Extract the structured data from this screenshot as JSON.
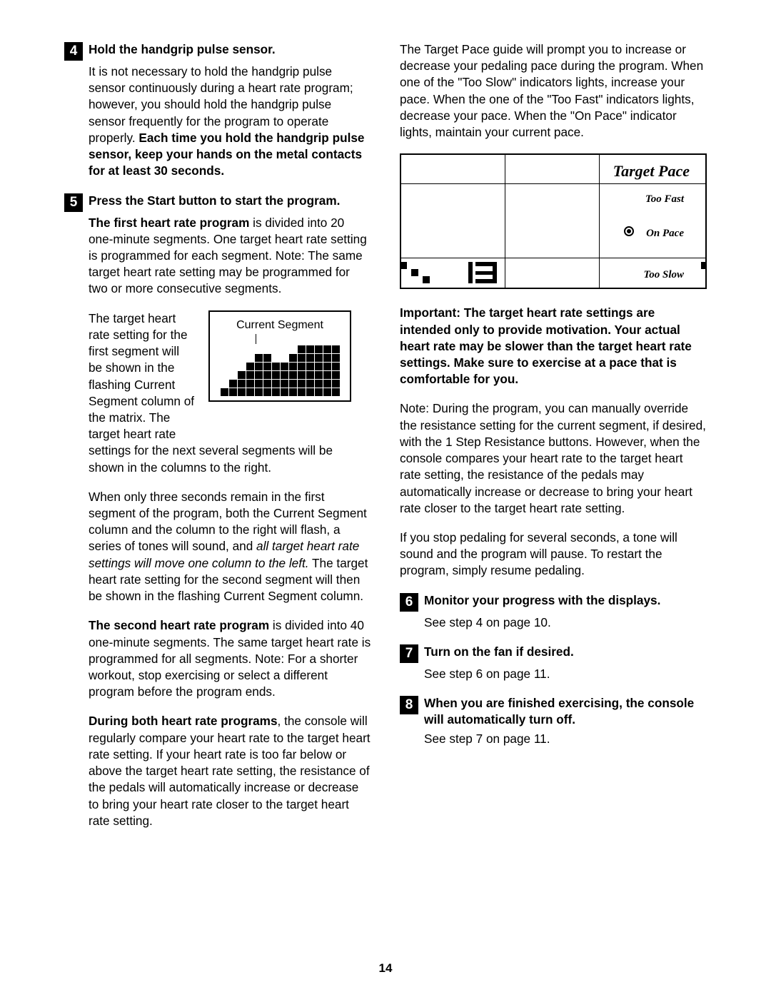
{
  "page_number": "14",
  "left": {
    "step4": {
      "num": "4",
      "title": "Hold the handgrip pulse sensor.",
      "p1a": "It is not necessary to hold the handgrip pulse sensor continuously during a heart rate program; however, you should hold the handgrip pulse sensor frequently for the program to operate properly. ",
      "p1b": "Each time you hold the handgrip pulse sensor, keep your hands on the metal contacts for at least 30 seconds."
    },
    "step5": {
      "num": "5",
      "title": "Press the Start button to start the program.",
      "p1a": "The first heart rate program",
      "p1b": " is divided into 20 one-minute segments. One target heart rate setting is programmed for each segment. Note: The same target heart rate setting may be programmed for two or more consecutive segments.",
      "seg_label": "Current Segment",
      "seg_text": "The target heart rate setting for the first segment will be shown in the flashing Current Segment column of the matrix. The target heart rate ",
      "p2": "settings for the next several segments will be shown in the columns to the right.",
      "p3a": "When only three seconds remain in the first segment of the program, both the Current Segment column and the column to the right will flash, a series of tones will sound, and ",
      "p3b": "all target heart rate settings will move one column to the left.",
      "p3c": " The target heart rate setting for the second segment will then be shown in the flashing Current Segment column.",
      "p4a": "The second heart rate program",
      "p4b": " is divided into 40 one-minute segments. The same target heart rate is programmed for all segments. Note: For a shorter workout, stop exercising or select a different program before the program ends.",
      "p5a": "During both heart rate programs",
      "p5b": ", the console will regularly compare your heart rate to the target heart rate setting. If your heart rate is too far below or above the target heart rate setting, the resistance of the pedals will automatically increase or decrease to bring your heart rate closer to the target heart rate setting."
    },
    "matrix": {
      "cols": 14,
      "rows": 6,
      "heights": [
        1,
        2,
        3,
        4,
        5,
        5,
        4,
        4,
        5,
        6,
        6,
        6,
        6,
        6
      ]
    }
  },
  "right": {
    "intro": "The Target Pace guide will prompt you to increase or decrease your pedaling pace during the program. When one of the \"Too Slow\" indicators lights, increase your pace. When the one of the \"Too Fast\" indicators lights, decrease your pace. When the \"On Pace\" indicator lights, maintain your current pace.",
    "pace": {
      "title": "Target Pace",
      "too_fast": "Too Fast",
      "on_pace": "On Pace",
      "too_slow": "Too Slow"
    },
    "important": "Important: The target heart rate settings are intended only to provide motivation. Your actual heart rate may be slower than the target heart rate settings. Make sure to exercise at a pace that is comfortable for you.",
    "note": "Note: During the program, you can manually override the resistance setting for the current segment, if desired, with the 1 Step Resistance buttons. However, when the console compares your heart rate to the target heart rate setting, the resistance of the pedals may automatically increase or decrease to bring your heart rate closer to the target heart rate setting.",
    "pause": "If you stop pedaling for several seconds, a tone will sound and the program will pause. To restart the program, simply resume pedaling.",
    "step6": {
      "num": "6",
      "title": "Monitor your progress with the displays.",
      "body": "See step 4 on page 10."
    },
    "step7": {
      "num": "7",
      "title": "Turn on the fan if desired.",
      "body": "See step 6 on page 11."
    },
    "step8": {
      "num": "8",
      "title": "When you are finished exercising, the console will automatically turn off.",
      "body": "See step 7 on page 11."
    }
  }
}
